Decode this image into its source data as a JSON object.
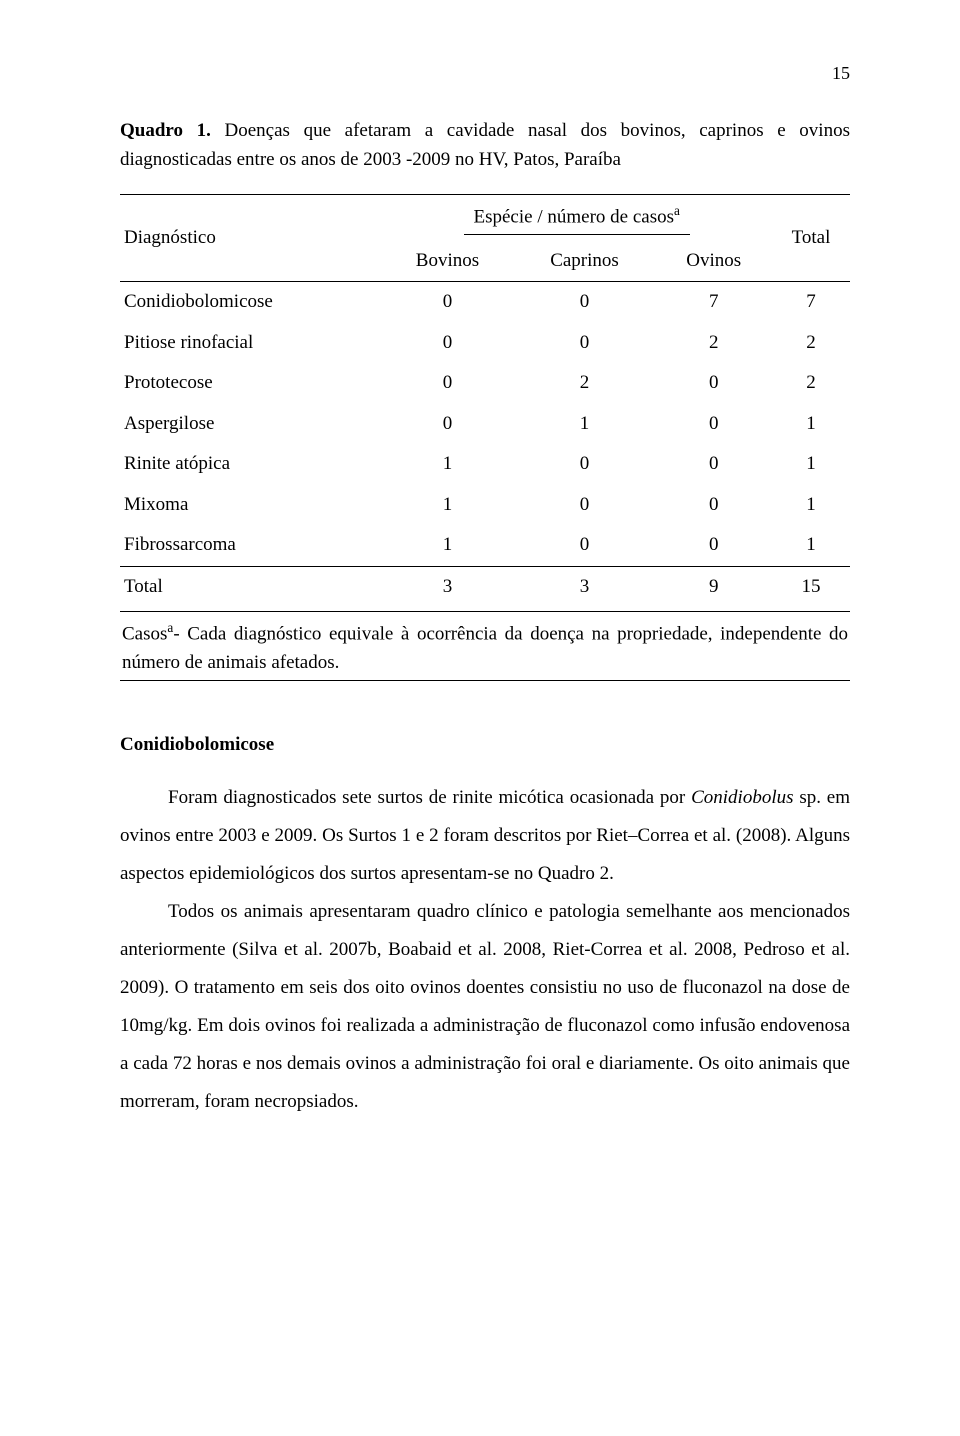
{
  "page_number": "15",
  "caption": {
    "label": "Quadro 1.",
    "text": " Doenças que afetaram a cavidade nasal dos bovinos, caprinos e ovinos diagnosticadas entre os anos de 2003 -2009 no HV, Patos, Paraíba"
  },
  "table": {
    "col_diag": "Diagnóstico",
    "col_species_group": "Espécie / número de casos",
    "sup_a": "a",
    "col_total": "Total",
    "subhead_bovinos": "Bovinos",
    "subhead_caprinos": "Caprinos",
    "subhead_ovinos": "Ovinos",
    "rows": [
      {
        "name": "Conidiobolomicose",
        "b": "0",
        "c": "0",
        "o": "7",
        "t": "7"
      },
      {
        "name": "Pitiose rinofacial",
        "b": "0",
        "c": "0",
        "o": "2",
        "t": "2"
      },
      {
        "name": "Prototecose",
        "b": "0",
        "c": "2",
        "o": "0",
        "t": "2"
      },
      {
        "name": "Aspergilose",
        "b": "0",
        "c": "1",
        "o": "0",
        "t": "1"
      },
      {
        "name": "Rinite atópica",
        "b": "1",
        "c": "0",
        "o": "0",
        "t": "1"
      },
      {
        "name": "Mixoma",
        "b": "1",
        "c": "0",
        "o": "0",
        "t": "1"
      },
      {
        "name": "Fibrossarcoma",
        "b": "1",
        "c": "0",
        "o": "0",
        "t": "1"
      }
    ],
    "total_label": "Total",
    "total_b": "3",
    "total_c": "3",
    "total_o": "9",
    "total_t": "15"
  },
  "footnote": {
    "prefix": "Casos",
    "sup": "a",
    "text": "- Cada diagnóstico equivale à ocorrência da doença na propriedade, independente do número de animais afetados."
  },
  "section_heading": "Conidiobolomicose",
  "body": {
    "p1a": "Foram diagnosticados sete surtos de rinite micótica ocasionada por ",
    "p1_italic": "Conidiobolus",
    "p1b": " sp. em ovinos entre 2003 e 2009. Os Surtos 1 e 2 foram descritos por Riet–Correa et al. (2008). Alguns aspectos epidemiológicos dos surtos apresentam-se no Quadro 2.",
    "p2": "Todos os animais apresentaram quadro clínico e patologia semelhante aos mencionados anteriormente (Silva et al. 2007b, Boabaid et al. 2008, Riet-Correa et al. 2008, Pedroso et al. 2009). O tratamento em seis dos oito ovinos doentes consistiu no uso de fluconazol na dose de 10mg/kg. Em dois ovinos foi realizada a administração de fluconazol como infusão endovenosa a cada 72 horas e nos demais ovinos a administração foi oral e diariamente. Os oito animais que morreram, foram necropsiados."
  }
}
